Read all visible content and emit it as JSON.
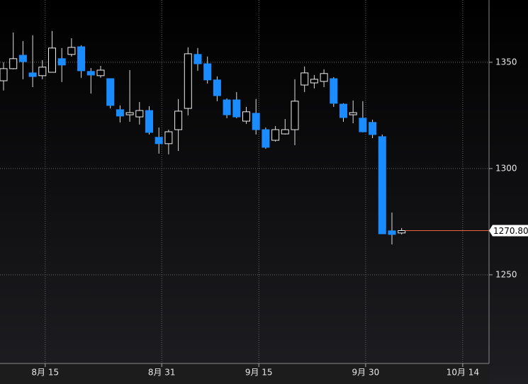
{
  "chart_data": {
    "type": "candlestick",
    "categories": [
      null,
      null,
      null,
      null,
      "8月 15",
      null,
      null,
      null,
      null,
      null,
      null,
      null,
      null,
      null,
      null,
      null,
      "8月 31",
      null,
      null,
      null,
      null,
      null,
      null,
      null,
      null,
      null,
      "9月 15",
      null,
      null,
      null,
      null,
      null,
      null,
      null,
      null,
      null,
      null,
      "9月 30",
      null,
      null,
      null,
      null,
      null,
      null,
      null,
      null,
      null,
      "10月 14",
      null,
      null
    ],
    "open": [
      1341.3,
      1347,
      1353.3,
      1345,
      1343.7,
      1345.3,
      1351.7,
      1353.7,
      1357.3,
      1345.7,
      1343.7,
      1342.3,
      1327.7,
      1325.3,
      1324.3,
      1327.3,
      1314.7,
      1311.7,
      1318.3,
      1328.3,
      1353.7,
      1349.3,
      1341.7,
      1332.3,
      1332.3,
      1322.3,
      1326,
      1318.3,
      1313.3,
      1316.3,
      1318.3,
      1339.3,
      1340.3,
      1341,
      1342.3,
      1330.3,
      1325.3,
      1323.7,
      1321.7,
      1315,
      1270.7,
      1269.7,
      null,
      null,
      null,
      null,
      null,
      null,
      null,
      null
    ],
    "high": [
      1350,
      1364,
      1360,
      1362.7,
      1351,
      1364.7,
      1356.7,
      1361.3,
      1358,
      1347.3,
      1348.3,
      1342.3,
      1329.7,
      1346.3,
      1331.3,
      1329.3,
      1319.3,
      1318.3,
      1332.7,
      1357,
      1356.7,
      1352.7,
      1343.3,
      1333,
      1336,
      1329,
      1332.7,
      1319.3,
      1320,
      1323.3,
      1342,
      1348,
      1344,
      1346.7,
      1343,
      1330.7,
      1332,
      1331.7,
      1323,
      1316,
      1279.3,
      1272,
      null,
      null,
      null,
      null,
      null,
      null,
      null,
      null
    ],
    "low": [
      1336.7,
      1346.7,
      1342,
      1338.3,
      1342,
      1345.3,
      1340.7,
      1352.7,
      1342.7,
      1335.3,
      1342.7,
      1328.3,
      1321.7,
      1322,
      1320.7,
      1316,
      1307,
      1306.7,
      1308.3,
      1325,
      1346,
      1340,
      1331.7,
      1323.7,
      1323.7,
      1321,
      1316,
      1309.3,
      1312.7,
      1316,
      1311,
      1336,
      1337.7,
      1338.3,
      1329,
      1322,
      1321.3,
      1317,
      1314.3,
      1269.3,
      1264.3,
      1269,
      null,
      null,
      null,
      null,
      null,
      null,
      null,
      null
    ],
    "close": [
      1347,
      1351.7,
      1350.3,
      1343.3,
      1347.7,
      1356.7,
      1348.7,
      1357,
      1346,
      1344,
      1346.3,
      1329.7,
      1324.7,
      1326.3,
      1327.3,
      1317,
      1311.7,
      1317.3,
      1327,
      1354,
      1349.3,
      1341.7,
      1334.3,
      1325.3,
      1324.3,
      1326.7,
      1318.3,
      1310,
      1318.3,
      1318.3,
      1331.7,
      1345,
      1342,
      1344.7,
      1330.7,
      1324,
      1326.3,
      1317.3,
      1316,
      1269.3,
      1269,
      1270.8,
      null,
      null,
      null,
      null,
      null,
      null,
      null,
      null
    ],
    "up_color": "#000000",
    "down_color": "#1a8cff",
    "last_price": {
      "value": 1270.8,
      "label": "1270.80"
    },
    "last_price_color": "#e8643c",
    "ylim": [
      1208.3,
      1379.3
    ],
    "yticks": [
      1250,
      1300,
      1350
    ],
    "grid": true
  }
}
